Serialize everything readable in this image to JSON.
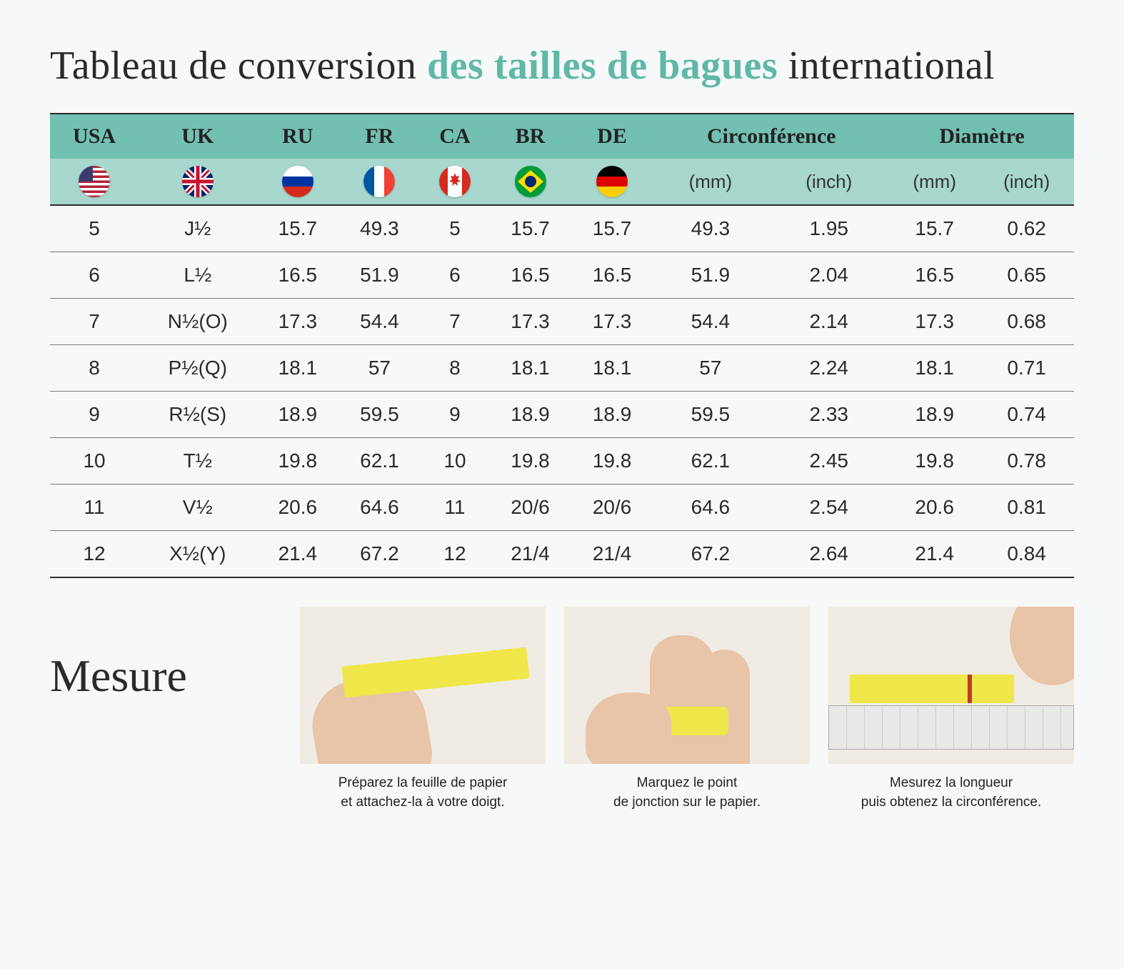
{
  "title_parts": {
    "before": "Tableau de conversion ",
    "accent": "des tailles de bagues",
    "after": " international"
  },
  "colors": {
    "background": "#f7f9f8",
    "header_bg": "#72c0b1",
    "subheader_bg": "#a7d7cd",
    "accent_text": "#5fb8a8",
    "rule": "#2a2a2a",
    "row_rule": "#777777",
    "paper_strip": "#f0e74a",
    "skin": "#e8c4a8"
  },
  "typography": {
    "title_fontsize": 56,
    "header_fontsize": 30,
    "subheader_fontsize": 26,
    "body_fontsize": 28,
    "mesure_fontsize": 64,
    "caption_fontsize": 19
  },
  "table": {
    "columns": [
      "USA",
      "UK",
      "RU",
      "FR",
      "CA",
      "BR",
      "DE",
      "Circonférence",
      "Diamètre"
    ],
    "column_spans": [
      1,
      1,
      1,
      1,
      1,
      1,
      1,
      2,
      2
    ],
    "subheaders": {
      "flags": [
        "usa",
        "uk",
        "ru",
        "fr",
        "ca",
        "br",
        "de"
      ],
      "measure_units": [
        "(mm)",
        "(inch)",
        "(mm)",
        "(inch)"
      ]
    },
    "rows": [
      [
        "5",
        "J½",
        "15.7",
        "49.3",
        "5",
        "15.7",
        "15.7",
        "49.3",
        "1.95",
        "15.7",
        "0.62"
      ],
      [
        "6",
        "L½",
        "16.5",
        "51.9",
        "6",
        "16.5",
        "16.5",
        "51.9",
        "2.04",
        "16.5",
        "0.65"
      ],
      [
        "7",
        "N½(O)",
        "17.3",
        "54.4",
        "7",
        "17.3",
        "17.3",
        "54.4",
        "2.14",
        "17.3",
        "0.68"
      ],
      [
        "8",
        "P½(Q)",
        "18.1",
        "57",
        "8",
        "18.1",
        "18.1",
        "57",
        "2.24",
        "18.1",
        "0.71"
      ],
      [
        "9",
        "R½(S)",
        "18.9",
        "59.5",
        "9",
        "18.9",
        "18.9",
        "59.5",
        "2.33",
        "18.9",
        "0.74"
      ],
      [
        "10",
        "T½",
        "19.8",
        "62.1",
        "10",
        "19.8",
        "19.8",
        "62.1",
        "2.45",
        "19.8",
        "0.78"
      ],
      [
        "11",
        "V½",
        "20.6",
        "64.6",
        "11",
        "20/6",
        "20/6",
        "64.6",
        "2.54",
        "20.6",
        "0.81"
      ],
      [
        "12",
        "X½(Y)",
        "21.4",
        "67.2",
        "12",
        "21/4",
        "21/4",
        "67.2",
        "2.64",
        "21.4",
        "0.84"
      ]
    ]
  },
  "flags_svg": {
    "usa": {
      "stripes": "#b22234",
      "white": "#ffffff",
      "canton": "#3c3b6e"
    },
    "uk": {
      "bg": "#012169",
      "white": "#ffffff",
      "red": "#c8102e"
    },
    "ru": {
      "top": "#ffffff",
      "mid": "#0033a0",
      "bot": "#d52b1e"
    },
    "fr": {
      "left": "#0055a4",
      "mid": "#ffffff",
      "right": "#ef4135"
    },
    "ca": {
      "side": "#d52b1e",
      "mid": "#ffffff"
    },
    "br": {
      "bg": "#009b3a",
      "diamond": "#fedf00",
      "circle": "#002776"
    },
    "de": {
      "top": "#000000",
      "mid": "#dd0000",
      "bot": "#ffce00"
    }
  },
  "mesure": {
    "title": "Mesure",
    "steps": [
      {
        "caption_l1": "Préparez la feuille de papier",
        "caption_l2": "et attachez-la à votre doigt."
      },
      {
        "caption_l1": "Marquez le point",
        "caption_l2": "de jonction sur le papier."
      },
      {
        "caption_l1": "Mesurez la longueur",
        "caption_l2": "puis obtenez la circonférence."
      }
    ]
  }
}
